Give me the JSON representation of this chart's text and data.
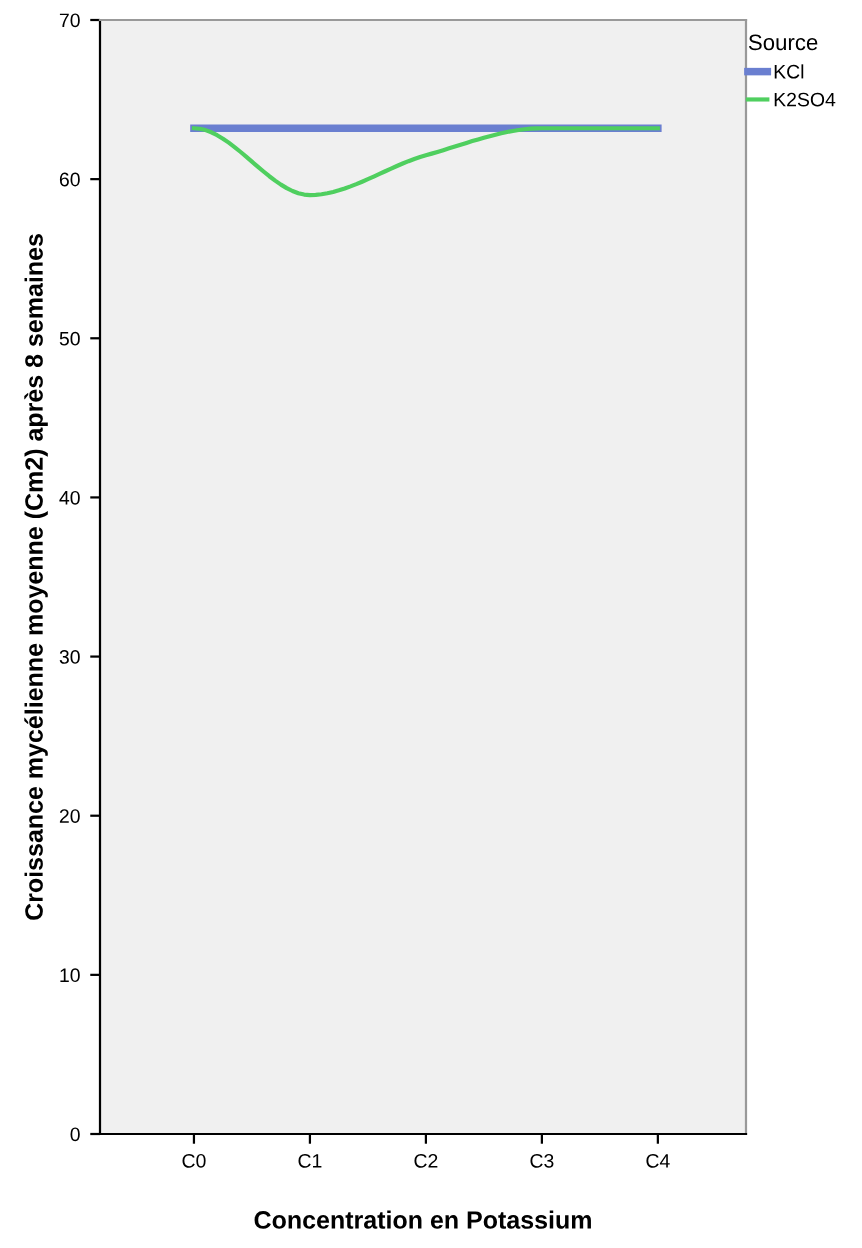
{
  "chart_data": {
    "type": "line",
    "xlabel": "Concentration en Potassium",
    "ylabel": "Croissance mycélienne moyenne (Cm2) après 8 semaines",
    "legend_title": "Source",
    "categories": [
      "C0",
      "C1",
      "C2",
      "C3",
      "C4"
    ],
    "series": [
      {
        "name": "KCl",
        "color": "#6a7fd0",
        "values": [
          63.2,
          63.2,
          63.2,
          63.2,
          63.2
        ]
      },
      {
        "name": "K2SO4",
        "color": "#4fcf5f",
        "values": [
          63.2,
          59.0,
          61.5,
          63.2,
          63.2
        ]
      }
    ],
    "ylim": [
      0,
      70
    ],
    "yticks": [
      0,
      10,
      20,
      30,
      40,
      50,
      60,
      70
    ],
    "grid": false,
    "legend": "top right",
    "marker": "none",
    "line_style": "solid"
  }
}
